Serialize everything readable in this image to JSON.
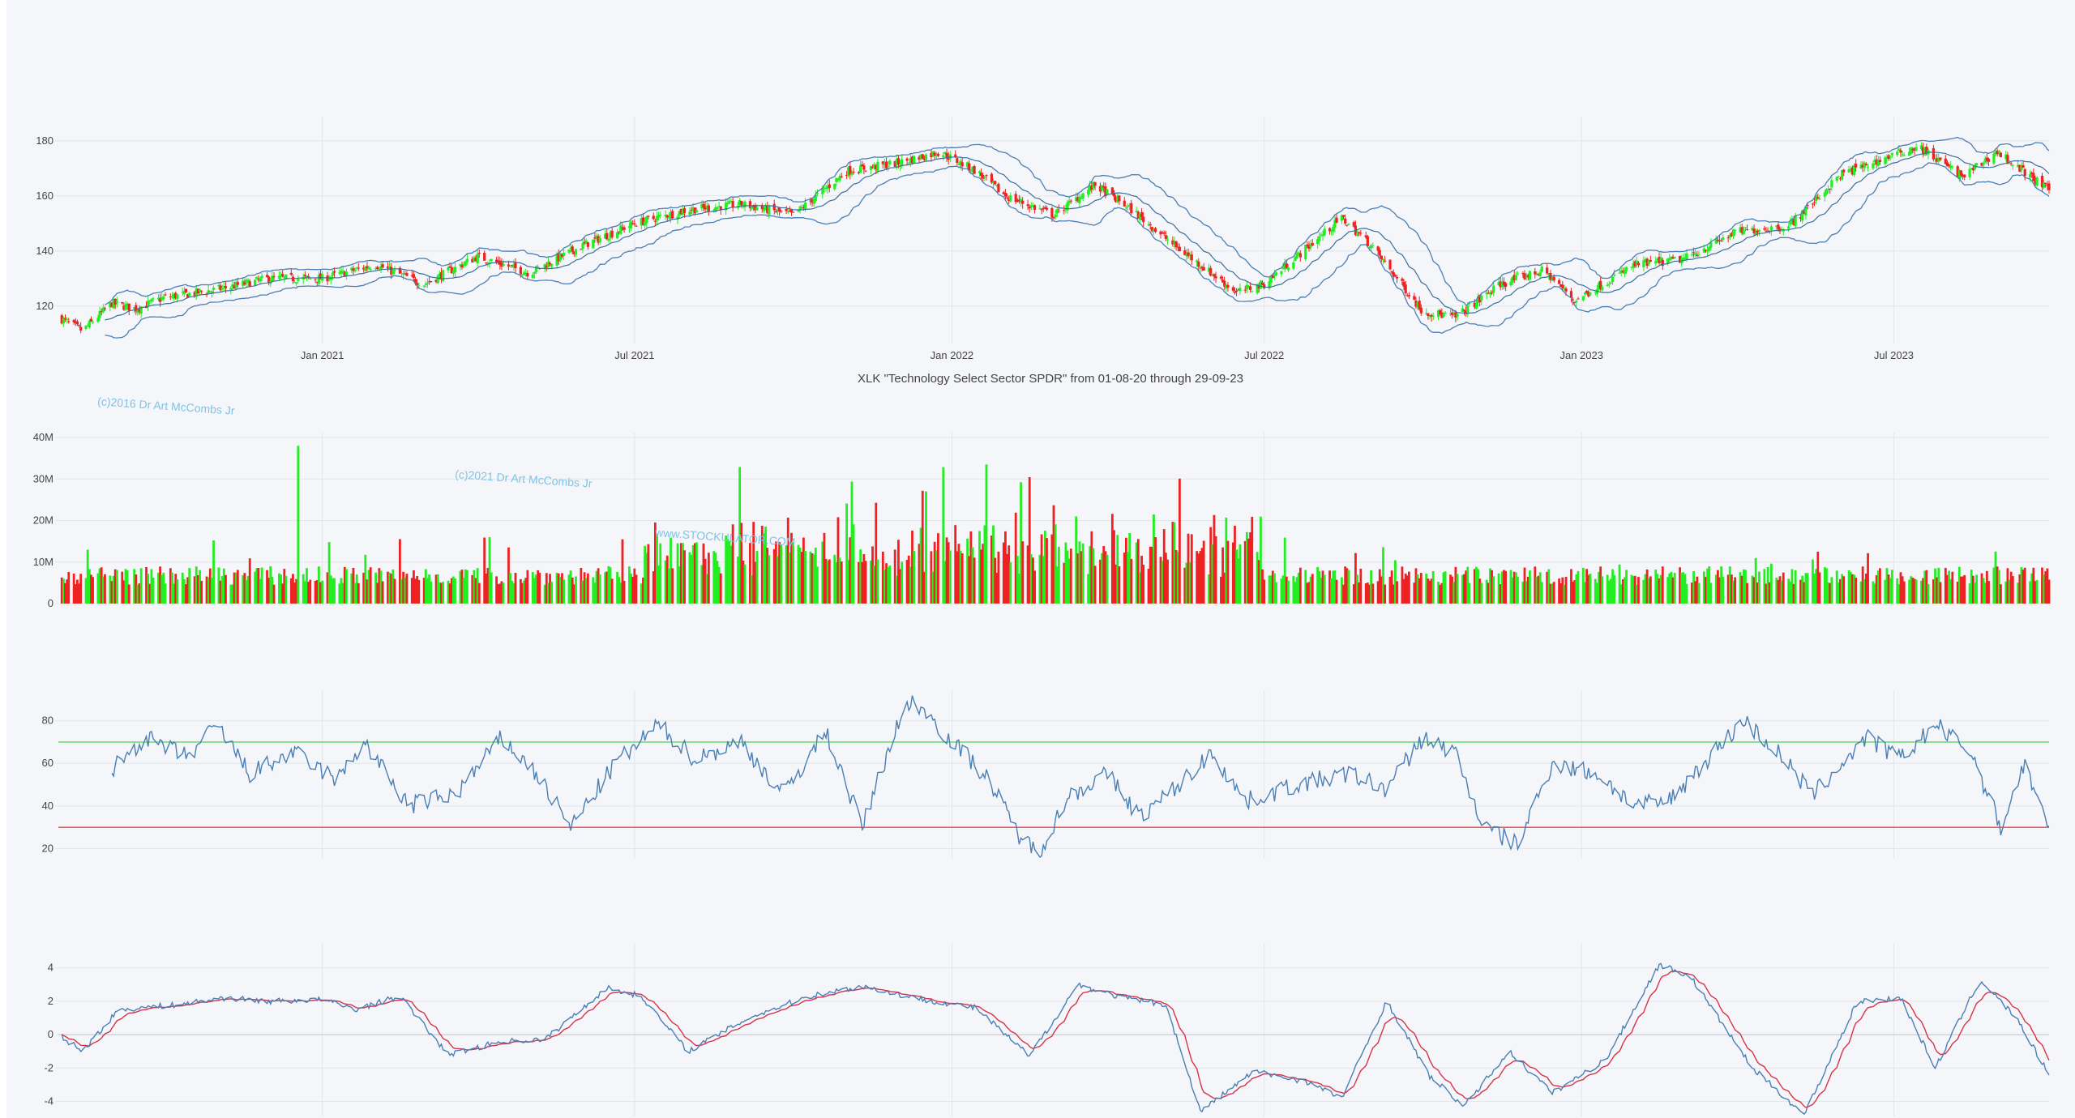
{
  "chart_title": "XLK \"Technology Select Sector SPDR\" from 01-08-20 through 29-09-23",
  "watermarks": [
    "(c)2016 Dr Art McCombs Jr",
    "(c)2021 Dr Art McCombs Jr",
    "www.STOCKULATOR.COM"
  ],
  "colors": {
    "up": "#22ee22",
    "down": "#ee2222",
    "band": "#4a7fb5",
    "signal": "#d6334a",
    "ob": "#55dd55",
    "os": "#ee4444",
    "grid": "#e2e5ea"
  },
  "chart_data": [
    {
      "type": "candlestick",
      "overlays": [
        "bollinger_upper",
        "bollinger_middle",
        "bollinger_lower"
      ],
      "x_ticks": [
        "Jan 2021",
        "Jul 2021",
        "Jan 2022",
        "Jul 2022",
        "Jan 2023",
        "Jul 2023"
      ],
      "xlim": [
        "2020-08-01",
        "2023-09-29"
      ],
      "y_ticks": [
        120,
        140,
        160,
        180
      ],
      "ylim": [
        107,
        187
      ],
      "close_path": [
        [
          "2020-08-01",
          116
        ],
        [
          "2020-08-15",
          111
        ],
        [
          "2020-09-01",
          121
        ],
        [
          "2020-09-15",
          119
        ],
        [
          "2020-10-01",
          123
        ],
        [
          "2020-11-01",
          126
        ],
        [
          "2020-12-01",
          130
        ],
        [
          "2021-01-01",
          130
        ],
        [
          "2021-02-01",
          135
        ],
        [
          "2021-03-01",
          128
        ],
        [
          "2021-04-01",
          138
        ],
        [
          "2021-05-01",
          132
        ],
        [
          "2021-06-01",
          142
        ],
        [
          "2021-07-01",
          150
        ],
        [
          "2021-08-01",
          155
        ],
        [
          "2021-09-01",
          157
        ],
        [
          "2021-10-01",
          153
        ],
        [
          "2021-11-01",
          169
        ],
        [
          "2021-12-01",
          172
        ],
        [
          "2021-12-25",
          176
        ],
        [
          "2022-01-15",
          169
        ],
        [
          "2022-02-01",
          160
        ],
        [
          "2022-03-01",
          153
        ],
        [
          "2022-03-25",
          164
        ],
        [
          "2022-04-15",
          155
        ],
        [
          "2022-05-10",
          142
        ],
        [
          "2022-06-15",
          125
        ],
        [
          "2022-07-01",
          128
        ],
        [
          "2022-08-15",
          152
        ],
        [
          "2022-09-01",
          142
        ],
        [
          "2022-10-01",
          118
        ],
        [
          "2022-10-20",
          116
        ],
        [
          "2022-11-15",
          128
        ],
        [
          "2022-12-10",
          133
        ],
        [
          "2022-12-28",
          122
        ],
        [
          "2023-02-01",
          135
        ],
        [
          "2023-03-01",
          137
        ],
        [
          "2023-04-01",
          147
        ],
        [
          "2023-05-01",
          149
        ],
        [
          "2023-06-01",
          168
        ],
        [
          "2023-07-15",
          178
        ],
        [
          "2023-08-10",
          167
        ],
        [
          "2023-08-30",
          176
        ],
        [
          "2023-09-29",
          162
        ]
      ]
    },
    {
      "type": "bar",
      "series": [
        "volume"
      ],
      "y_ticks": [
        "0",
        "10M",
        "20M",
        "30M",
        "40M"
      ],
      "ylim": [
        0,
        40000000
      ],
      "notable_values": [
        [
          "2020-12-18",
          38000000
        ],
        [
          "2022-01-21",
          33500000
        ],
        [
          "2021-12-17",
          27000000
        ]
      ]
    },
    {
      "type": "line",
      "series": [
        "RSI"
      ],
      "y_ticks": [
        20,
        40,
        60,
        80
      ],
      "ylim": [
        16,
        92
      ],
      "overbought": 70,
      "oversold": 30,
      "values": [
        [
          "2020-09-01",
          57
        ],
        [
          "2020-09-20",
          72
        ],
        [
          "2020-10-15",
          63
        ],
        [
          "2020-11-01",
          78
        ],
        [
          "2020-11-20",
          55
        ],
        [
          "2020-12-15",
          65
        ],
        [
          "2021-01-10",
          52
        ],
        [
          "2021-01-25",
          70
        ],
        [
          "2021-02-20",
          40
        ],
        [
          "2021-03-20",
          46
        ],
        [
          "2021-04-15",
          72
        ],
        [
          "2021-05-05",
          55
        ],
        [
          "2021-05-25",
          30
        ],
        [
          "2021-06-20",
          60
        ],
        [
          "2021-07-15",
          78
        ],
        [
          "2021-08-05",
          62
        ],
        [
          "2021-09-01",
          70
        ],
        [
          "2021-09-25",
          45
        ],
        [
          "2021-10-20",
          75
        ],
        [
          "2021-11-10",
          30
        ],
        [
          "2021-11-30",
          78
        ],
        [
          "2021-12-10",
          90
        ],
        [
          "2021-12-30",
          72
        ],
        [
          "2022-01-20",
          55
        ],
        [
          "2022-02-10",
          25
        ],
        [
          "2022-02-20",
          18
        ],
        [
          "2022-03-10",
          45
        ],
        [
          "2022-04-01",
          55
        ],
        [
          "2022-04-20",
          35
        ],
        [
          "2022-05-10",
          48
        ],
        [
          "2022-06-01",
          65
        ],
        [
          "2022-06-20",
          42
        ],
        [
          "2022-07-20",
          50
        ],
        [
          "2022-08-20",
          55
        ],
        [
          "2022-09-10",
          48
        ],
        [
          "2022-10-01",
          72
        ],
        [
          "2022-10-20",
          65
        ],
        [
          "2022-11-05",
          30
        ],
        [
          "2022-11-25",
          22
        ],
        [
          "2022-12-15",
          60
        ],
        [
          "2023-01-10",
          55
        ],
        [
          "2023-02-01",
          40
        ],
        [
          "2023-02-20",
          42
        ],
        [
          "2023-03-15",
          62
        ],
        [
          "2023-04-05",
          80
        ],
        [
          "2023-04-25",
          65
        ],
        [
          "2023-05-15",
          45
        ],
        [
          "2023-06-15",
          72
        ],
        [
          "2023-07-05",
          62
        ],
        [
          "2023-07-25",
          78
        ],
        [
          "2023-08-15",
          65
        ],
        [
          "2023-09-01",
          30
        ],
        [
          "2023-09-15",
          60
        ],
        [
          "2023-09-29",
          28
        ]
      ]
    },
    {
      "type": "line",
      "series": [
        "MACD",
        "Signal"
      ],
      "y_ticks": [
        -4,
        -2,
        0,
        2,
        4
      ],
      "ylim": [
        -4.8,
        5.2
      ],
      "macd": [
        [
          "2020-08-01",
          0.0
        ],
        [
          "2020-08-15",
          -1.0
        ],
        [
          "2020-09-05",
          1.5
        ],
        [
          "2020-10-10",
          1.8
        ],
        [
          "2020-11-05",
          2.2
        ],
        [
          "2020-12-01",
          2.0
        ],
        [
          "2021-01-01",
          2.1
        ],
        [
          "2021-01-20",
          1.5
        ],
        [
          "2021-02-15",
          2.3
        ],
        [
          "2021-03-15",
          -1.2
        ],
        [
          "2021-04-15",
          -0.4
        ],
        [
          "2021-05-10",
          -0.3
        ],
        [
          "2021-06-15",
          2.8
        ],
        [
          "2021-07-05",
          2.3
        ],
        [
          "2021-08-01",
          -1.0
        ],
        [
          "2021-09-05",
          1.0
        ],
        [
          "2021-10-10",
          2.3
        ],
        [
          "2021-11-10",
          2.9
        ],
        [
          "2021-12-10",
          2.2
        ],
        [
          "2022-01-15",
          1.6
        ],
        [
          "2022-02-15",
          -1.3
        ],
        [
          "2022-03-15",
          3.0
        ],
        [
          "2022-04-10",
          2.2
        ],
        [
          "2022-05-05",
          1.8
        ],
        [
          "2022-05-25",
          -4.6
        ],
        [
          "2022-06-25",
          -2.2
        ],
        [
          "2022-07-25",
          -2.8
        ],
        [
          "2022-08-15",
          -3.8
        ],
        [
          "2022-09-10",
          2.0
        ],
        [
          "2022-10-05",
          -2.5
        ],
        [
          "2022-10-25",
          -4.3
        ],
        [
          "2022-11-20",
          -1.0
        ],
        [
          "2022-12-15",
          -3.5
        ],
        [
          "2023-01-15",
          -1.5
        ],
        [
          "2023-02-15",
          4.2
        ],
        [
          "2023-03-05",
          3.5
        ],
        [
          "2023-04-10",
          -2.0
        ],
        [
          "2023-05-10",
          -4.8
        ],
        [
          "2023-06-10",
          2.0
        ],
        [
          "2023-07-05",
          2.2
        ],
        [
          "2023-07-25",
          -2.0
        ],
        [
          "2023-08-20",
          3.3
        ],
        [
          "2023-09-10",
          1.0
        ],
        [
          "2023-09-29",
          -2.4
        ]
      ]
    }
  ]
}
